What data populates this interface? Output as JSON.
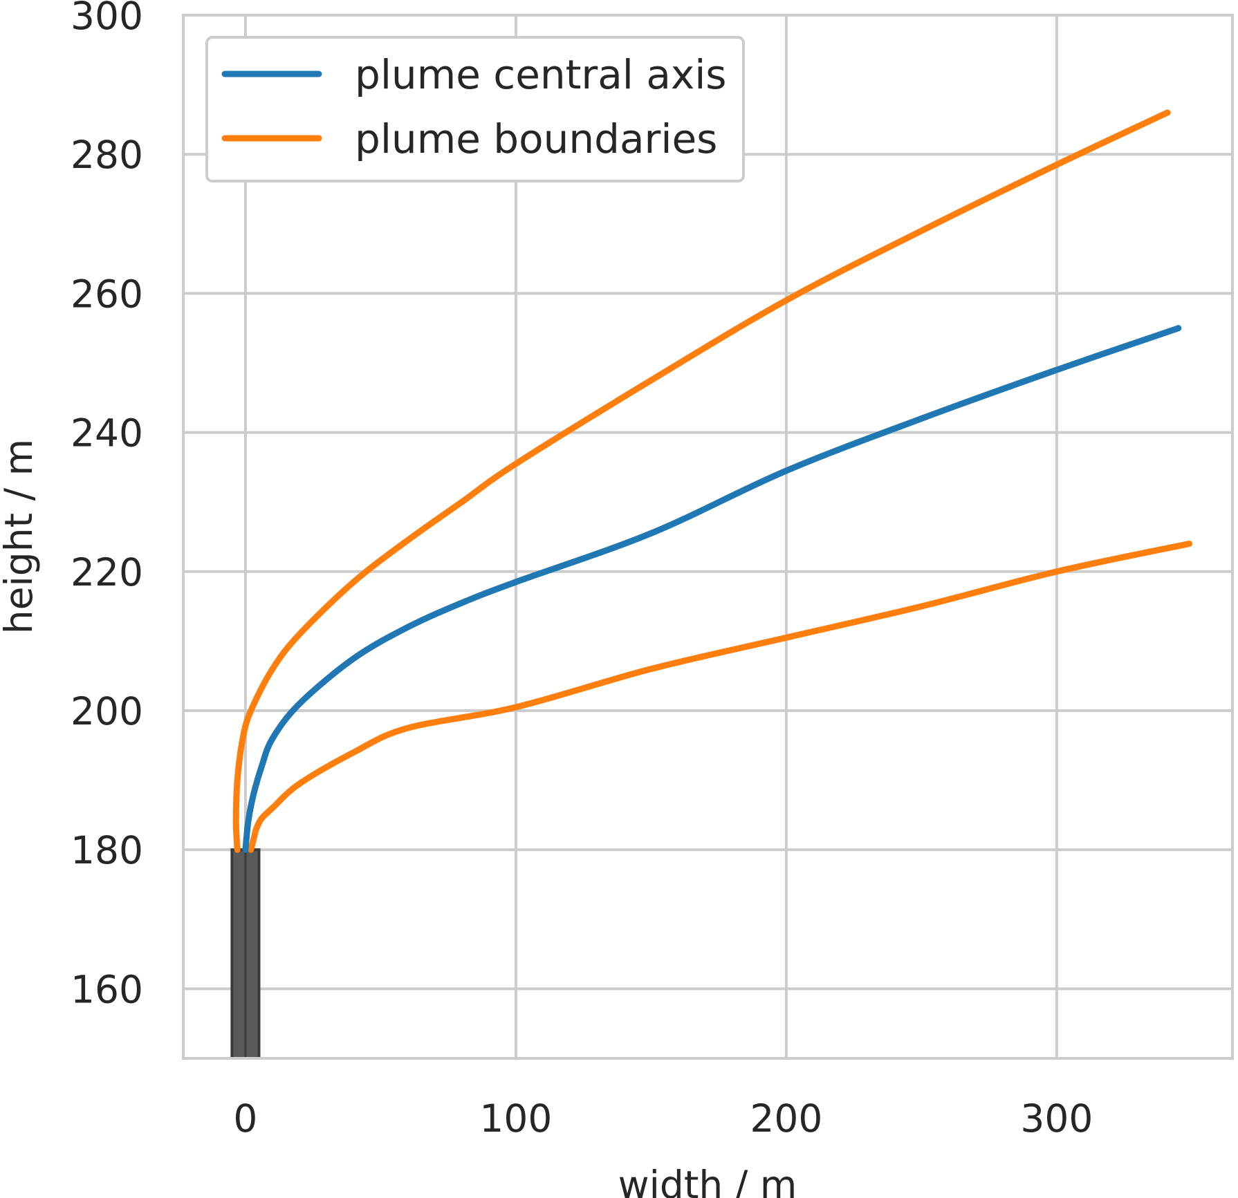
{
  "chart_data": {
    "type": "line",
    "xlabel": "width / m",
    "ylabel": "height / m",
    "xlim": [
      -23,
      365
    ],
    "ylim": [
      150,
      300
    ],
    "x_ticks": [
      "0",
      "100",
      "200",
      "300"
    ],
    "x_tick_values": [
      0,
      100,
      200,
      300
    ],
    "y_ticks": [
      "160",
      "180",
      "200",
      "220",
      "240",
      "260",
      "280",
      "300"
    ],
    "y_tick_values": [
      160,
      180,
      200,
      220,
      240,
      260,
      280,
      300
    ],
    "grid": true,
    "legend_position": "upper-left",
    "stack": {
      "x": [
        -5,
        5
      ],
      "y": [
        150,
        180
      ],
      "color": "#595959"
    },
    "series": [
      {
        "name": "plume central axis",
        "color": "#1f77b4",
        "points": [
          [
            0,
            180
          ],
          [
            1,
            184
          ],
          [
            3,
            188
          ],
          [
            6,
            192
          ],
          [
            10,
            196
          ],
          [
            20,
            201
          ],
          [
            40,
            207.5
          ],
          [
            60,
            212
          ],
          [
            80,
            215.5
          ],
          [
            100,
            218.5
          ],
          [
            150,
            225.5
          ],
          [
            200,
            234.5
          ],
          [
            250,
            242
          ],
          [
            300,
            249
          ],
          [
            345,
            255
          ]
        ]
      },
      {
        "name": "plume boundaries",
        "color": "#ff7f0e",
        "points": [
          [
            -3,
            180
          ],
          [
            -3.5,
            184
          ],
          [
            -3,
            190
          ],
          [
            -1,
            196
          ],
          [
            2,
            200
          ],
          [
            10,
            206
          ],
          [
            20,
            211
          ],
          [
            40,
            218.5
          ],
          [
            60,
            224.5
          ],
          [
            80,
            230
          ],
          [
            100,
            235.5
          ],
          [
            150,
            247.5
          ],
          [
            200,
            259
          ],
          [
            250,
            269
          ],
          [
            300,
            278.5
          ],
          [
            341,
            286
          ]
        ]
      },
      {
        "name": "",
        "color": "#ff7f0e",
        "points": [
          [
            2,
            180
          ],
          [
            3,
            181.5
          ],
          [
            4,
            183
          ],
          [
            6,
            184.5
          ],
          [
            10,
            186
          ],
          [
            20,
            189.5
          ],
          [
            40,
            194
          ],
          [
            60,
            197.5
          ],
          [
            100,
            200.5
          ],
          [
            150,
            206
          ],
          [
            200,
            210.5
          ],
          [
            250,
            215
          ],
          [
            300,
            220
          ],
          [
            349,
            224
          ]
        ]
      }
    ]
  }
}
